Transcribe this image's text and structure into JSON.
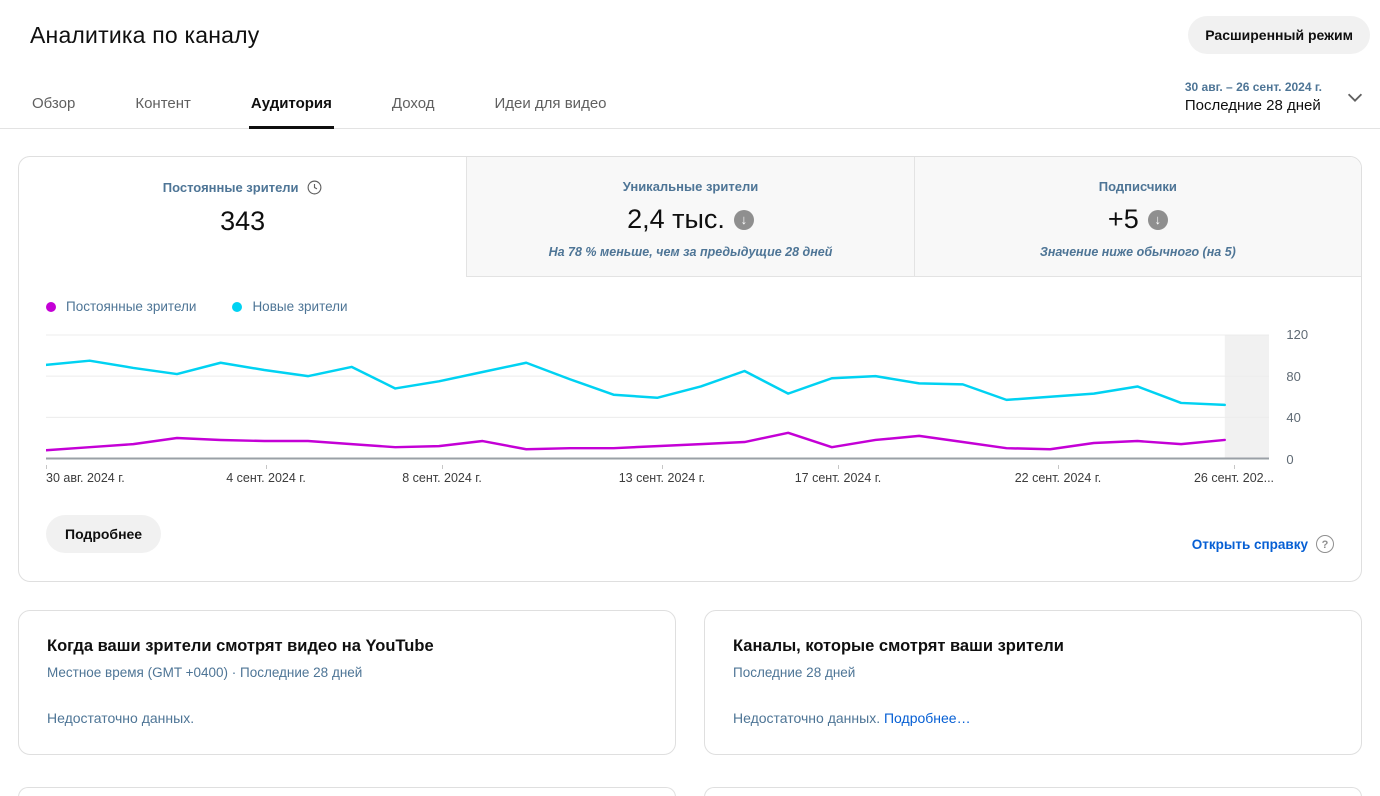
{
  "header": {
    "title": "Аналитика по каналу",
    "advanced_mode_button": "Расширенный режим"
  },
  "tabs": [
    {
      "label": "Обзор",
      "active": false
    },
    {
      "label": "Контент",
      "active": false
    },
    {
      "label": "Аудитория",
      "active": true
    },
    {
      "label": "Доход",
      "active": false
    },
    {
      "label": "Идеи для видео",
      "active": false
    }
  ],
  "date_picker": {
    "range": "30 авг. – 26 сент. 2024 г.",
    "label": "Последние 28 дней"
  },
  "metrics": [
    {
      "label": "Постоянные зрители",
      "value": "343",
      "icon": "clock-icon",
      "subtitle": "",
      "selected": true
    },
    {
      "label": "Уникальные зрители",
      "value": "2,4 тыс.",
      "icon": "trend-down-icon",
      "subtitle": "На 78 % меньше, чем за предыдущие 28 дней",
      "selected": false
    },
    {
      "label": "Подписчики",
      "value": "+5",
      "icon": "trend-down-icon",
      "subtitle": "Значение ниже обычного (на 5)",
      "selected": false
    }
  ],
  "icons": {
    "down_arrow": "↓",
    "help": "?"
  },
  "colors": {
    "link_blue": "#065fd4",
    "secondary_text": "#4e7596",
    "returning_viewers_line": "#c400d6",
    "new_viewers_line": "#00d2f2",
    "highlight_shade": "#f1f1f1"
  },
  "chart_data": {
    "type": "line",
    "title": "",
    "xlabel": "",
    "ylabel": "",
    "days": 28,
    "ylim": [
      0,
      120
    ],
    "yticks": [
      0,
      40,
      80,
      120
    ],
    "grid": true,
    "legend_position": "top-left",
    "highlight_last_segment": true,
    "x_labels": [
      "30 авг. 2024 г.",
      "4 сент. 2024 г.",
      "8 сент. 2024 г.",
      "13 сент. 2024 г.",
      "17 сент. 2024 г.",
      "22 сент. 2024 г.",
      "26 сент. 202..."
    ],
    "x_label_days": [
      0,
      5,
      9,
      14,
      18,
      23,
      27
    ],
    "series": [
      {
        "name": "Постоянные зрители",
        "color": "#c400d6",
        "values": [
          8,
          11,
          14,
          20,
          18,
          17,
          17,
          14,
          11,
          12,
          17,
          9,
          10,
          10,
          12,
          14,
          16,
          25,
          11,
          18,
          22,
          16,
          10,
          9,
          15,
          17,
          14,
          18
        ]
      },
      {
        "name": "Новые зрители",
        "color": "#00d2f2",
        "values": [
          91,
          95,
          88,
          82,
          93,
          86,
          80,
          89,
          68,
          75,
          84,
          93,
          77,
          62,
          59,
          70,
          85,
          63,
          78,
          80,
          73,
          72,
          57,
          60,
          63,
          70,
          54,
          52
        ]
      }
    ]
  },
  "chart_footer": {
    "details_button": "Подробнее",
    "help_link": "Открыть справку"
  },
  "cards": [
    {
      "title": "Когда ваши зрители смотрят видео на YouTube",
      "subtitle": "Местное время (GMT +0400) · Последние 28 дней",
      "body": "Недостаточно данных.",
      "link": ""
    },
    {
      "title": "Каналы, которые смотрят ваши зрители",
      "subtitle": "Последние 28 дней",
      "body": "Недостаточно данных.",
      "link": "Подробнее…"
    }
  ]
}
